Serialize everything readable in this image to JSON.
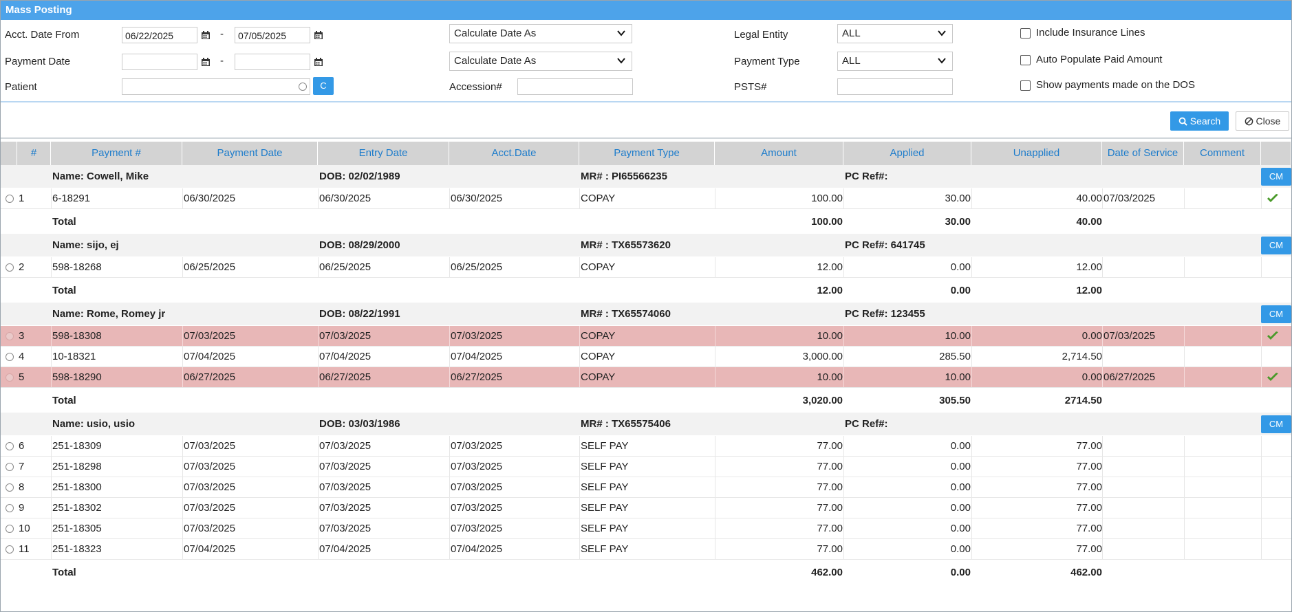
{
  "window": {
    "title": "Mass Posting"
  },
  "filters": {
    "acct_date_from_label": "Acct. Date From",
    "acct_date_from": "06/22/2025",
    "acct_date_to": "07/05/2025",
    "payment_date_label": "Payment Date",
    "payment_date_from": "",
    "payment_date_to": "",
    "patient_label": "Patient",
    "patient_value": "",
    "c_button": "C",
    "calc_date_1": "Calculate Date As",
    "calc_date_2": "Calculate Date As",
    "accession_label": "Accession#",
    "accession_value": "",
    "legal_entity_label": "Legal Entity",
    "legal_entity_value": "ALL",
    "payment_type_label": "Payment Type",
    "payment_type_value": "ALL",
    "psts_label": "PSTS#",
    "psts_value": "",
    "include_insurance": "Include Insurance Lines",
    "auto_populate": "Auto Populate Paid Amount",
    "show_payments_dos": "Show payments made on the DOS",
    "dash": "-"
  },
  "actions": {
    "search": "Search",
    "close": "Close"
  },
  "table": {
    "headers": [
      "#",
      "Payment #",
      "Payment Date",
      "Entry Date",
      "Acct.Date",
      "Payment Type",
      "Amount",
      "Applied",
      "Unapplied",
      "Date of Service",
      "Comment"
    ],
    "cm_label": "CM",
    "total_label": "Total",
    "groups": [
      {
        "name": "Name: Cowell, Mike",
        "dob": "DOB: 02/02/1989",
        "mr": "MR# : PI65566235",
        "pcref": "PC Ref#:",
        "rows": [
          {
            "n": "1",
            "payment": "6-18291",
            "pdate": "06/30/2025",
            "edate": "06/30/2025",
            "adate": "06/30/2025",
            "type": "COPAY",
            "amount": "100.00",
            "applied": "30.00",
            "unapplied": "40.00",
            "dos": "07/03/2025",
            "checked": true,
            "hl": false
          }
        ],
        "total": {
          "amount": "100.00",
          "applied": "30.00",
          "unapplied": "40.00"
        }
      },
      {
        "name": "Name: sijo, ej",
        "dob": "DOB: 08/29/2000",
        "mr": "MR# : TX65573620",
        "pcref": "PC Ref#: 641745",
        "rows": [
          {
            "n": "2",
            "payment": "598-18268",
            "pdate": "06/25/2025",
            "edate": "06/25/2025",
            "adate": "06/25/2025",
            "type": "COPAY",
            "amount": "12.00",
            "applied": "0.00",
            "unapplied": "12.00",
            "dos": "",
            "checked": false,
            "hl": false
          }
        ],
        "total": {
          "amount": "12.00",
          "applied": "0.00",
          "unapplied": "12.00"
        }
      },
      {
        "name": "Name: Rome, Romey jr",
        "dob": "DOB: 08/22/1991",
        "mr": "MR# : TX65574060",
        "pcref": "PC Ref#: 123455",
        "rows": [
          {
            "n": "3",
            "payment": "598-18308",
            "pdate": "07/03/2025",
            "edate": "07/03/2025",
            "adate": "07/03/2025",
            "type": "COPAY",
            "amount": "10.00",
            "applied": "10.00",
            "unapplied": "0.00",
            "dos": "07/03/2025",
            "checked": true,
            "hl": true
          },
          {
            "n": "4",
            "payment": "10-18321",
            "pdate": "07/04/2025",
            "edate": "07/04/2025",
            "adate": "07/04/2025",
            "type": "COPAY",
            "amount": "3,000.00",
            "applied": "285.50",
            "unapplied": "2,714.50",
            "dos": "",
            "checked": false,
            "hl": false
          },
          {
            "n": "5",
            "payment": "598-18290",
            "pdate": "06/27/2025",
            "edate": "06/27/2025",
            "adate": "06/27/2025",
            "type": "COPAY",
            "amount": "10.00",
            "applied": "10.00",
            "unapplied": "0.00",
            "dos": "06/27/2025",
            "checked": true,
            "hl": true
          }
        ],
        "total": {
          "amount": "3,020.00",
          "applied": "305.50",
          "unapplied": "2714.50"
        }
      },
      {
        "name": "Name: usio, usio",
        "dob": "DOB: 03/03/1986",
        "mr": "MR# : TX65575406",
        "pcref": "PC Ref#:",
        "rows": [
          {
            "n": "6",
            "payment": "251-18309",
            "pdate": "07/03/2025",
            "edate": "07/03/2025",
            "adate": "07/03/2025",
            "type": "SELF PAY",
            "amount": "77.00",
            "applied": "0.00",
            "unapplied": "77.00",
            "dos": "",
            "checked": false,
            "hl": false
          },
          {
            "n": "7",
            "payment": "251-18298",
            "pdate": "07/03/2025",
            "edate": "07/03/2025",
            "adate": "07/03/2025",
            "type": "SELF PAY",
            "amount": "77.00",
            "applied": "0.00",
            "unapplied": "77.00",
            "dos": "",
            "checked": false,
            "hl": false
          },
          {
            "n": "8",
            "payment": "251-18300",
            "pdate": "07/03/2025",
            "edate": "07/03/2025",
            "adate": "07/03/2025",
            "type": "SELF PAY",
            "amount": "77.00",
            "applied": "0.00",
            "unapplied": "77.00",
            "dos": "",
            "checked": false,
            "hl": false
          },
          {
            "n": "9",
            "payment": "251-18302",
            "pdate": "07/03/2025",
            "edate": "07/03/2025",
            "adate": "07/03/2025",
            "type": "SELF PAY",
            "amount": "77.00",
            "applied": "0.00",
            "unapplied": "77.00",
            "dos": "",
            "checked": false,
            "hl": false
          },
          {
            "n": "10",
            "payment": "251-18305",
            "pdate": "07/03/2025",
            "edate": "07/03/2025",
            "adate": "07/03/2025",
            "type": "SELF PAY",
            "amount": "77.00",
            "applied": "0.00",
            "unapplied": "77.00",
            "dos": "",
            "checked": false,
            "hl": false
          },
          {
            "n": "11",
            "payment": "251-18323",
            "pdate": "07/04/2025",
            "edate": "07/04/2025",
            "adate": "07/04/2025",
            "type": "SELF PAY",
            "amount": "77.00",
            "applied": "0.00",
            "unapplied": "77.00",
            "dos": "",
            "checked": false,
            "hl": false
          }
        ],
        "total": {
          "amount": "462.00",
          "applied": "0.00",
          "unapplied": "462.00"
        }
      }
    ]
  }
}
